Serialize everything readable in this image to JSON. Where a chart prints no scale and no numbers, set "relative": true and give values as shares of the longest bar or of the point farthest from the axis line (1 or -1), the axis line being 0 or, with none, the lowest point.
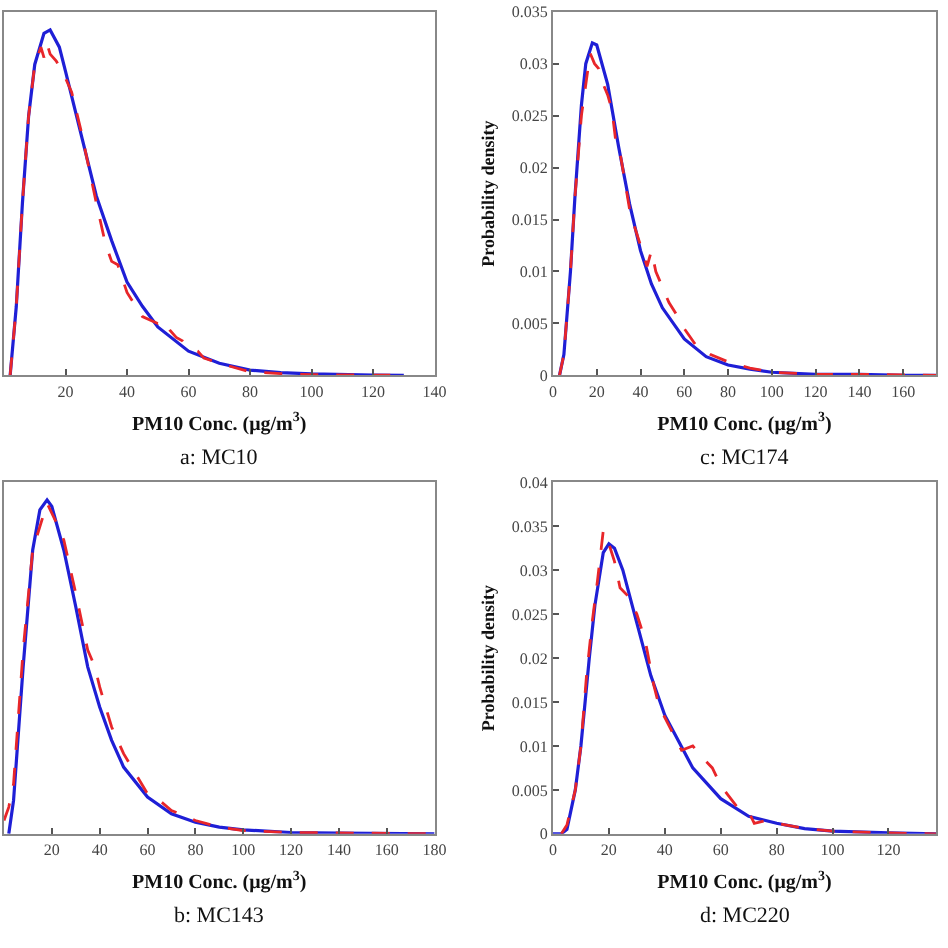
{
  "chart_data": [
    {
      "type": "line",
      "relative": true,
      "xlabel": "PM10 Conc. (μg/m$^{3}$)",
      "annotations": [
        "a: MC10"
      ],
      "xlim": [
        0,
        140
      ],
      "xticks": [
        20,
        40,
        60,
        80,
        100,
        120,
        140
      ],
      "series": [
        {
          "color": "#1f1fd6",
          "line_style": "solid",
          "x": [
            2,
            4,
            6,
            8,
            10,
            13,
            15,
            18,
            20,
            25,
            30,
            35,
            40,
            45,
            50,
            60,
            70,
            80,
            90,
            100,
            120,
            130
          ],
          "values": [
            0,
            0.2,
            0.5,
            0.75,
            0.9,
            0.99,
            1,
            0.95,
            0.88,
            0.7,
            0.52,
            0.39,
            0.27,
            0.2,
            0.14,
            0.07,
            0.035,
            0.015,
            0.008,
            0.004,
            0.001,
            0
          ]
        },
        {
          "color": "#e8262a",
          "line_style": "dashed",
          "x": [
            2,
            4,
            6,
            8,
            10,
            12,
            13,
            14,
            15,
            17,
            20,
            22,
            25,
            30,
            33,
            35,
            37,
            40,
            45,
            50,
            52,
            54,
            56,
            58,
            60,
            63,
            65,
            70,
            80,
            90,
            100,
            130
          ],
          "values": [
            0,
            0.2,
            0.5,
            0.75,
            0.9,
            0.95,
            0.92,
            0.96,
            0.93,
            0.91,
            0.86,
            0.82,
            0.71,
            0.5,
            0.38,
            0.33,
            0.32,
            0.24,
            0.17,
            0.15,
            0.16,
            0.13,
            0.11,
            0.1,
            0.08,
            0.07,
            0.05,
            0.035,
            0.01,
            0.005,
            0.002,
            0
          ]
        }
      ]
    },
    {
      "type": "line",
      "xlabel": "PM10 Conc. (μg/m$^{3}$)",
      "ylabel": "Probability density",
      "annotations": [
        "c: MC174"
      ],
      "xlim": [
        0,
        175
      ],
      "xticks": [
        0,
        20,
        40,
        60,
        80,
        100,
        120,
        140,
        160
      ],
      "ylim": [
        0,
        0.035
      ],
      "yticks": [
        0,
        0.005,
        0.01,
        0.015,
        0.02,
        0.025,
        0.03,
        0.035
      ],
      "series": [
        {
          "color": "#1f1fd6",
          "line_style": "solid",
          "x": [
            3,
            5,
            8,
            10,
            13,
            15,
            18,
            20,
            25,
            30,
            35,
            40,
            45,
            50,
            60,
            70,
            80,
            90,
            100,
            120,
            140,
            160,
            175
          ],
          "values": [
            0,
            0.002,
            0.01,
            0.017,
            0.026,
            0.03,
            0.032,
            0.0318,
            0.028,
            0.022,
            0.0165,
            0.012,
            0.0088,
            0.0065,
            0.0035,
            0.0018,
            0.001,
            0.0006,
            0.0003,
            0.0001,
            0.0001,
            0,
            0
          ]
        },
        {
          "color": "#e8262a",
          "line_style": "dashed",
          "x": [
            3,
            5,
            8,
            10,
            13,
            15,
            17,
            19,
            21,
            23,
            25,
            27,
            29,
            31,
            35,
            37,
            40,
            43,
            45,
            47,
            50,
            53,
            56,
            60,
            65,
            68,
            72,
            80,
            90,
            100,
            120,
            140,
            175
          ],
          "values": [
            0,
            0.002,
            0.01,
            0.017,
            0.025,
            0.028,
            0.031,
            0.03,
            0.0295,
            0.028,
            0.027,
            0.0255,
            0.022,
            0.021,
            0.016,
            0.0145,
            0.0125,
            0.0105,
            0.012,
            0.01,
            0.0085,
            0.007,
            0.006,
            0.0045,
            0.003,
            0.0025,
            0.002,
            0.0013,
            0.0007,
            0.0003,
            0.0001,
            0.0001,
            0
          ]
        }
      ]
    },
    {
      "type": "line",
      "relative": true,
      "xlabel": "PM10 Conc. (μg/m$^{3}$)",
      "annotations": [
        "b: MC143"
      ],
      "xlim": [
        0,
        180
      ],
      "xticks": [
        20,
        40,
        60,
        80,
        100,
        120,
        140,
        160,
        180
      ],
      "series": [
        {
          "color": "#1f1fd6",
          "line_style": "solid",
          "x": [
            2,
            4,
            8,
            12,
            15,
            18,
            20,
            25,
            30,
            35,
            40,
            45,
            50,
            60,
            70,
            80,
            90,
            100,
            120,
            140,
            180
          ],
          "values": [
            0,
            0.1,
            0.5,
            0.85,
            0.97,
            1,
            0.98,
            0.85,
            0.68,
            0.5,
            0.38,
            0.28,
            0.2,
            0.11,
            0.06,
            0.035,
            0.02,
            0.012,
            0.004,
            0.002,
            0
          ]
        },
        {
          "color": "#e8262a",
          "line_style": "dashed",
          "x": [
            0,
            2,
            4,
            8,
            12,
            15,
            18,
            20,
            22,
            25,
            30,
            35,
            38,
            40,
            45,
            50,
            55,
            60,
            65,
            70,
            80,
            90,
            100,
            120,
            180
          ],
          "values": [
            0.04,
            0.08,
            0.15,
            0.55,
            0.85,
            0.92,
            0.99,
            0.96,
            0.93,
            0.88,
            0.72,
            0.55,
            0.5,
            0.44,
            0.32,
            0.24,
            0.18,
            0.12,
            0.1,
            0.07,
            0.04,
            0.02,
            0.01,
            0.004,
            0
          ]
        }
      ]
    },
    {
      "type": "line",
      "xlabel": "PM10 Conc. (μg/m$^{3}$)",
      "ylabel": "Probability density",
      "annotations": [
        "d: MC220"
      ],
      "xlim": [
        0,
        137
      ],
      "xticks": [
        0,
        20,
        40,
        60,
        80,
        100,
        120
      ],
      "ylim": [
        0,
        0.04
      ],
      "yticks": [
        0,
        0.005,
        0.01,
        0.015,
        0.02,
        0.025,
        0.03,
        0.035,
        0.04
      ],
      "series": [
        {
          "color": "#1f1fd6",
          "line_style": "solid",
          "x": [
            0,
            3,
            5,
            8,
            10,
            13,
            15,
            18,
            20,
            22,
            25,
            30,
            35,
            40,
            45,
            50,
            60,
            70,
            80,
            90,
            100,
            120,
            137
          ],
          "values": [
            0,
            0,
            0.0005,
            0.005,
            0.01,
            0.02,
            0.026,
            0.032,
            0.033,
            0.0325,
            0.03,
            0.024,
            0.018,
            0.0135,
            0.0105,
            0.0075,
            0.004,
            0.002,
            0.0012,
            0.0006,
            0.0003,
            0.0001,
            0
          ]
        },
        {
          "color": "#e8262a",
          "line_style": "dashed",
          "x": [
            3,
            5,
            8,
            10,
            12,
            14,
            16,
            18,
            20,
            22,
            24,
            27,
            30,
            33,
            36,
            38,
            42,
            46,
            50,
            54,
            57,
            60,
            66,
            70,
            72,
            76,
            80,
            90,
            100,
            120,
            137
          ],
          "values": [
            0,
            0.001,
            0.005,
            0.01,
            0.018,
            0.024,
            0.029,
            0.0345,
            0.033,
            0.031,
            0.028,
            0.027,
            0.025,
            0.022,
            0.017,
            0.0145,
            0.012,
            0.0095,
            0.01,
            0.0085,
            0.0075,
            0.0055,
            0.003,
            0.0025,
            0.0012,
            0.0015,
            0.0012,
            0.0006,
            0.0003,
            0.0001,
            0
          ]
        }
      ]
    }
  ]
}
